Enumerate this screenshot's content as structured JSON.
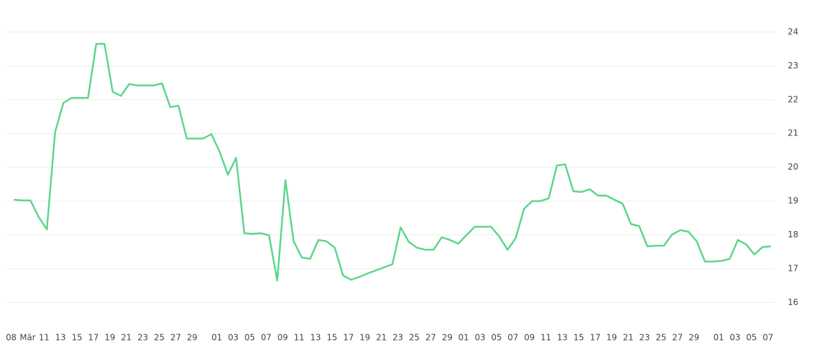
{
  "chart_data": {
    "type": "line",
    "categories": [
      "08",
      null,
      "Mär",
      null,
      "11",
      null,
      "13",
      null,
      "15",
      null,
      "17",
      null,
      "19",
      null,
      "21",
      null,
      "23",
      null,
      "25",
      null,
      "27",
      null,
      "29",
      null,
      null,
      "01",
      null,
      "03",
      null,
      "05",
      null,
      "07",
      null,
      "09",
      null,
      "11",
      null,
      "13",
      null,
      "15",
      null,
      "17",
      null,
      "19",
      null,
      "21",
      null,
      "23",
      null,
      "25",
      null,
      "27",
      null,
      "29",
      null,
      "01",
      null,
      "03",
      null,
      "05",
      null,
      "07",
      null,
      "09",
      null,
      "11",
      null,
      "13",
      null,
      "15",
      null,
      "17",
      null,
      "19",
      null,
      "21",
      null,
      "23",
      null,
      "25",
      null,
      "27",
      null,
      "29",
      null,
      null,
      "01",
      null,
      "03",
      null,
      "05",
      null,
      "07"
    ],
    "series": [
      {
        "color": "#5ad68a",
        "values": [
          19.04,
          19.02,
          19.02,
          18.53,
          18.16,
          21.04,
          21.9,
          22.05,
          22.05,
          22.05,
          23.65,
          23.65,
          22.23,
          22.11,
          22.46,
          22.42,
          22.42,
          22.42,
          22.48,
          21.78,
          21.82,
          20.85,
          20.85,
          20.85,
          20.98,
          20.46,
          19.78,
          20.28,
          18.05,
          18.03,
          18.05,
          17.99,
          16.65,
          19.62,
          17.81,
          17.33,
          17.29,
          17.85,
          17.81,
          17.62,
          16.8,
          16.67,
          16.76,
          16.86,
          16.95,
          17.04,
          17.13,
          18.22,
          17.79,
          17.62,
          17.56,
          17.56,
          17.93,
          17.85,
          17.74,
          17.99,
          18.24,
          18.24,
          18.24,
          17.95,
          17.56,
          17.91,
          18.77,
          19.0,
          19.0,
          19.08,
          20.05,
          20.09,
          19.29,
          19.27,
          19.35,
          19.16,
          19.16,
          19.04,
          18.92,
          18.32,
          18.26,
          17.66,
          17.68,
          17.68,
          18.01,
          18.14,
          18.09,
          17.81,
          17.21,
          17.21,
          17.23,
          17.29,
          17.85,
          17.72,
          17.42,
          17.64,
          17.66
        ]
      }
    ],
    "ylim": [
      15.45,
      24.7
    ],
    "yticks": [
      16,
      17,
      18,
      19,
      20,
      21,
      22,
      23,
      24
    ],
    "grid": true,
    "y_axis_side": "right"
  }
}
